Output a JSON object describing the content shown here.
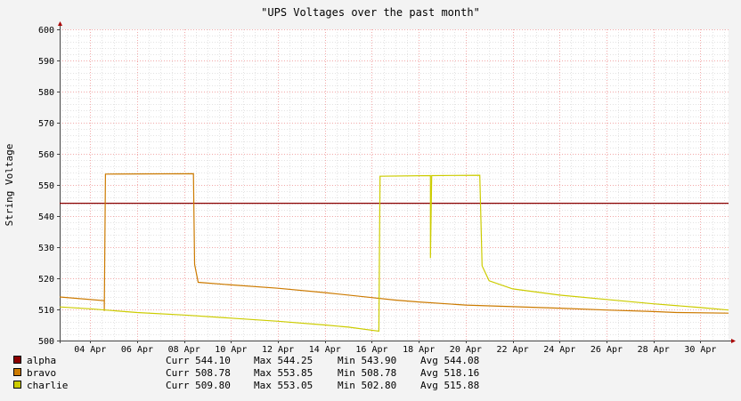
{
  "chart_data": {
    "type": "line",
    "title": "\"UPS Voltages over the past month\"",
    "xlabel": "",
    "ylabel": "String Voltage",
    "ylim": [
      500,
      600
    ],
    "yticks": [
      500,
      510,
      520,
      530,
      540,
      550,
      560,
      570,
      580,
      590,
      600
    ],
    "xlim": [
      2.7,
      31.2
    ],
    "xticks": [
      {
        "day": 4,
        "label": "04 Apr"
      },
      {
        "day": 6,
        "label": "06 Apr"
      },
      {
        "day": 8,
        "label": "08 Apr"
      },
      {
        "day": 10,
        "label": "10 Apr"
      },
      {
        "day": 12,
        "label": "12 Apr"
      },
      {
        "day": 14,
        "label": "14 Apr"
      },
      {
        "day": 16,
        "label": "16 Apr"
      },
      {
        "day": 18,
        "label": "18 Apr"
      },
      {
        "day": 20,
        "label": "20 Apr"
      },
      {
        "day": 22,
        "label": "22 Apr"
      },
      {
        "day": 24,
        "label": "24 Apr"
      },
      {
        "day": 26,
        "label": "26 Apr"
      },
      {
        "day": 28,
        "label": "28 Apr"
      },
      {
        "day": 30,
        "label": "30 Apr"
      }
    ],
    "grid": true,
    "legend_position": "bottom",
    "series": [
      {
        "name": "alpha",
        "color": "#8b0000",
        "points": [
          [
            2.7,
            544.1
          ],
          [
            31.2,
            544.1
          ]
        ],
        "stats": {
          "curr": "Curr 544.10",
          "max": "Max 544.25",
          "min": "Min 543.90",
          "avg": "Avg 544.08"
        }
      },
      {
        "name": "bravo",
        "color": "#cc7a00",
        "points": [
          [
            2.7,
            514.0
          ],
          [
            4.6,
            512.8
          ],
          [
            4.6,
            509.5
          ],
          [
            4.65,
            553.5
          ],
          [
            8.4,
            553.6
          ],
          [
            8.45,
            524.5
          ],
          [
            8.6,
            518.7
          ],
          [
            10.0,
            517.9
          ],
          [
            12.0,
            516.8
          ],
          [
            14.0,
            515.4
          ],
          [
            16.0,
            513.8
          ],
          [
            17.0,
            513.0
          ],
          [
            18.0,
            512.4
          ],
          [
            20.0,
            511.4
          ],
          [
            22.0,
            510.9
          ],
          [
            24.0,
            510.4
          ],
          [
            26.0,
            509.8
          ],
          [
            28.0,
            509.3
          ],
          [
            29.0,
            509.0
          ],
          [
            31.2,
            508.8
          ]
        ],
        "stats": {
          "curr": "Curr 508.78",
          "max": "Max 553.85",
          "min": "Min 508.78",
          "avg": "Avg 518.16"
        }
      },
      {
        "name": "charlie",
        "color": "#cccc00",
        "points": [
          [
            2.7,
            510.8
          ],
          [
            4.0,
            510.2
          ],
          [
            6.0,
            509.0
          ],
          [
            8.0,
            508.2
          ],
          [
            10.0,
            507.2
          ],
          [
            12.0,
            506.2
          ],
          [
            14.0,
            505.0
          ],
          [
            15.0,
            504.3
          ],
          [
            16.3,
            503.0
          ],
          [
            16.35,
            552.8
          ],
          [
            18.5,
            553.0
          ],
          [
            18.5,
            526.5
          ],
          [
            18.55,
            553.0
          ],
          [
            20.6,
            553.1
          ],
          [
            20.7,
            524.0
          ],
          [
            21.0,
            519.2
          ],
          [
            22.0,
            516.6
          ],
          [
            24.0,
            514.6
          ],
          [
            26.0,
            513.2
          ],
          [
            28.0,
            511.8
          ],
          [
            30.0,
            510.6
          ],
          [
            31.2,
            509.8
          ]
        ],
        "stats": {
          "curr": "Curr 509.80",
          "max": "Max 553.05",
          "min": "Min 502.80",
          "avg": "Avg 515.88"
        }
      }
    ]
  }
}
